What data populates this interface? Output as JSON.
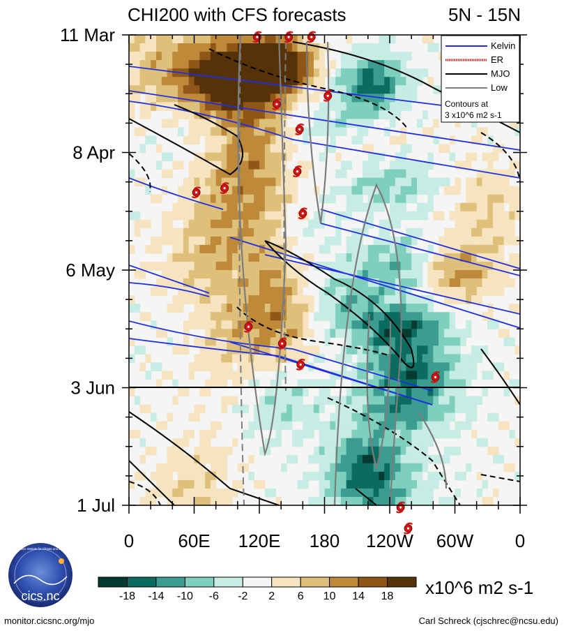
{
  "chart_data": {
    "type": "heatmap",
    "title": "CHI200 with CFS forecasts",
    "region": "5N - 15N",
    "y_tick_labels": [
      "11 Mar",
      "8 Apr",
      "6 May",
      "3 Jun",
      "1 Jul"
    ],
    "y_minor_ticks_per_major": 4,
    "forecast_start_label": "3 Jun",
    "x_tick_labels": [
      "0",
      "60E",
      "120E",
      "180",
      "120W",
      "60W",
      "0"
    ],
    "xlim_degrees": [
      0,
      360
    ],
    "legend": {
      "entries": [
        {
          "name": "Kelvin",
          "color": "#1f2fe0",
          "style": "solid"
        },
        {
          "name": "ER",
          "color": "#d81f1f",
          "style": "dotted"
        },
        {
          "name": "MJO",
          "color": "#000000",
          "style": "solid"
        },
        {
          "name": "Low",
          "color": "#7c7c7c",
          "style": "solid"
        }
      ],
      "note_lines": [
        "Contours at",
        "3 x10^6 m2 s-1"
      ],
      "placement": "top-right"
    },
    "colorbar": {
      "tick_labels": [
        "-18",
        "-14",
        "-10",
        "-6",
        "-2",
        "2",
        "6",
        "10",
        "14",
        "18"
      ],
      "colors": [
        "#053a30",
        "#0b6b5e",
        "#3b9d8f",
        "#7fcfbf",
        "#c6ece3",
        "#f5f5f5",
        "#f6e4c0",
        "#dfc07a",
        "#be8a3a",
        "#8f5717",
        "#553208"
      ],
      "units": "x10^6 m2 s-1"
    },
    "tropical_cyclones": [
      {
        "lon": 118,
        "day": 0
      },
      {
        "lon": 147,
        "day": 0
      },
      {
        "lon": 168,
        "day": 0
      },
      {
        "lon": 183,
        "day": 14
      },
      {
        "lon": 136,
        "day": 16
      },
      {
        "lon": 157,
        "day": 22
      },
      {
        "lon": 155,
        "day": 32
      },
      {
        "lon": 62,
        "day": 37
      },
      {
        "lon": 88,
        "day": 36
      },
      {
        "lon": 160,
        "day": 42
      },
      {
        "lon": 110,
        "day": 69
      },
      {
        "lon": 141,
        "day": 73
      },
      {
        "lon": 158,
        "day": 78
      },
      {
        "lon": 282,
        "day": 81
      },
      {
        "lon": 250,
        "day": 112
      },
      {
        "lon": 257,
        "day": 117
      }
    ]
  },
  "logo_text": "cics.nc",
  "logo_ring_text": "Cooperative Institute for Climate and Satellites",
  "footer": {
    "left": "monitor.cicsnc.org/mjo",
    "right": "Carl Schreck (cjschrec@ncsu.edu)"
  }
}
